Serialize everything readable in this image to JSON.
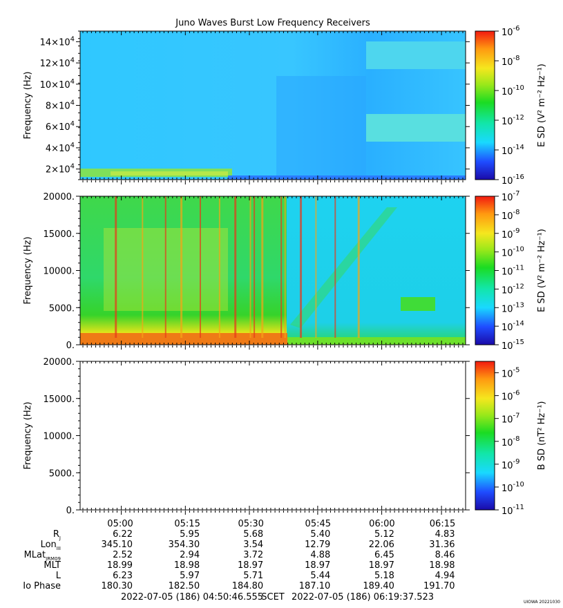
{
  "title": "Juno Waves Burst Low Frequency Receivers",
  "corner_tag": "UIOWA 20221030",
  "colormap": [
    "#1a0aa8",
    "#1f4cff",
    "#19d9ff",
    "#12e6a8",
    "#1bdc22",
    "#9be81a",
    "#f5e71e",
    "#ff9a10",
    "#f21a10"
  ],
  "chart_data": [
    {
      "type": "heatmap",
      "ylabel": "Frequency (Hz)",
      "yticks": [
        "2×10^4",
        "4×10^4",
        "6×10^4",
        "8×10^4",
        "10×10^4",
        "12×10^4",
        "14×10^4"
      ],
      "yticks_display": [
        {
          "m": "2×10",
          "e": "4"
        },
        {
          "m": "4×10",
          "e": "4"
        },
        {
          "m": "6×10",
          "e": "4"
        },
        {
          "m": "8×10",
          "e": "4"
        },
        {
          "m": "10×10",
          "e": "4"
        },
        {
          "m": "12×10",
          "e": "4"
        },
        {
          "m": "14×10",
          "e": "4"
        }
      ],
      "ytick_values": [
        20000,
        40000,
        60000,
        80000,
        100000,
        120000,
        140000
      ],
      "ylim": [
        10000,
        150000
      ],
      "colorbar_label": "E SD (V² m⁻² Hz⁻¹)",
      "colorbar_ticks": [
        "-6",
        "-8",
        "-10",
        "-12",
        "-14",
        "-16"
      ],
      "colorbar_range_log10": [
        -16,
        -6
      ]
    },
    {
      "type": "heatmap",
      "ylabel": "Frequency (Hz)",
      "yticks": [
        "20000.",
        "15000.",
        "10000.",
        "5000.",
        "0."
      ],
      "ytick_values": [
        20000,
        15000,
        10000,
        5000,
        0
      ],
      "ylim": [
        0,
        20000
      ],
      "colorbar_label": "E SD (V² m⁻² Hz⁻¹)",
      "colorbar_ticks": [
        "-7",
        "-8",
        "-9",
        "-10",
        "-11",
        "-12",
        "-13",
        "-14",
        "-15"
      ],
      "colorbar_range_log10": [
        -15,
        -7
      ]
    },
    {
      "type": "heatmap",
      "ylabel": "Frequency (Hz)",
      "yticks": [
        "20000.",
        "15000.",
        "10000.",
        "5000.",
        "0."
      ],
      "ytick_values": [
        20000,
        15000,
        10000,
        5000,
        0
      ],
      "ylim": [
        0,
        20000
      ],
      "colorbar_label": "B SD (nT² Hz⁻¹)",
      "colorbar_ticks": [
        "-5",
        "-6",
        "-7",
        "-8",
        "-9",
        "-10",
        "-11"
      ],
      "colorbar_range_log10": [
        -11,
        -4.5
      ],
      "empty": true
    }
  ],
  "time_axis": {
    "labels": [
      "05:00",
      "05:15",
      "05:30",
      "05:45",
      "06:00",
      "06:15"
    ],
    "start": "2022-07-05 (186) 04:50:46.555",
    "end": "2022-07-05 (186) 06:19:37.523",
    "separator": "SCET"
  },
  "ephemeris": [
    {
      "label": "R",
      "sub": "J",
      "values": [
        "6.22",
        "5.95",
        "5.68",
        "5.40",
        "5.12",
        "4.83"
      ]
    },
    {
      "label": "Lon",
      "sub": "III",
      "values": [
        "345.10",
        "354.30",
        "3.54",
        "12.79",
        "22.06",
        "31.36"
      ]
    },
    {
      "label": "MLat",
      "sub": "JRM09",
      "values": [
        "2.52",
        "2.94",
        "3.72",
        "4.88",
        "6.45",
        "8.46"
      ]
    },
    {
      "label": "MLT",
      "sub": "",
      "values": [
        "18.99",
        "18.98",
        "18.97",
        "18.97",
        "18.97",
        "18.98"
      ]
    },
    {
      "label": "L",
      "sub": "",
      "values": [
        "6.23",
        "5.97",
        "5.71",
        "5.44",
        "5.18",
        "4.94"
      ]
    },
    {
      "label": "Io Phase",
      "sub": "",
      "values": [
        "180.30",
        "182.50",
        "184.80",
        "187.10",
        "189.40",
        "191.70"
      ]
    }
  ]
}
